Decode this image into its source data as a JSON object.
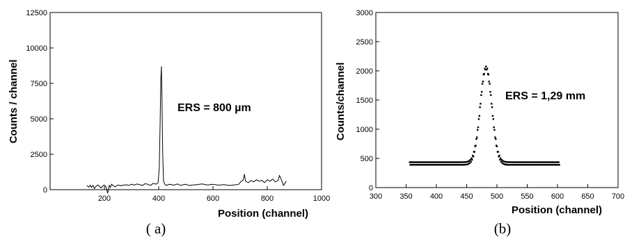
{
  "chart_data": [
    {
      "type": "line",
      "xlabel": "Position (channel)",
      "ylabel": "Counts / channel",
      "xlim": [
        0,
        1000
      ],
      "ylim": [
        0,
        12500
      ],
      "xticks": [
        200,
        400,
        600,
        800,
        1000
      ],
      "yticks": [
        0,
        2500,
        5000,
        7500,
        10000,
        12500
      ],
      "annotation": "ERS = 800 µm",
      "caption": "( a)",
      "series": [
        {
          "x": [
            135,
            142,
            148,
            152,
            158,
            163,
            170,
            176,
            182,
            188,
            195,
            200,
            206,
            212,
            218,
            222,
            226,
            232,
            240,
            250,
            260,
            270,
            280,
            290,
            300,
            310,
            320,
            330,
            340,
            350,
            360,
            370,
            380,
            390,
            398,
            402,
            405,
            408,
            410,
            412,
            415,
            418,
            422,
            428,
            440,
            455,
            470,
            480,
            490,
            500,
            510,
            520,
            540,
            560,
            580,
            600,
            620,
            640,
            660,
            680,
            695,
            700,
            705,
            712,
            716,
            720,
            730,
            740,
            750,
            760,
            770,
            780,
            790,
            800,
            810,
            820,
            830,
            840,
            845,
            850,
            860,
            870
          ],
          "y": [
            300,
            180,
            320,
            150,
            300,
            80,
            260,
            330,
            240,
            120,
            290,
            320,
            200,
            -250,
            300,
            150,
            380,
            300,
            200,
            330,
            280,
            320,
            350,
            300,
            380,
            320,
            400,
            350,
            300,
            420,
            380,
            300,
            450,
            380,
            500,
            1500,
            4500,
            7800,
            8700,
            6500,
            2500,
            600,
            400,
            300,
            380,
            320,
            400,
            300,
            350,
            380,
            300,
            320,
            360,
            400,
            330,
            380,
            320,
            360,
            300,
            340,
            380,
            500,
            600,
            700,
            1100,
            600,
            500,
            650,
            550,
            700,
            600,
            650,
            500,
            700,
            600,
            750,
            550,
            650,
            1000,
            800,
            300,
            600
          ]
        }
      ]
    },
    {
      "type": "scatter",
      "xlabel": "Position (channel)",
      "ylabel": "Counts/channel",
      "xlim": [
        300,
        700
      ],
      "ylim": [
        0,
        3000
      ],
      "xticks": [
        300,
        350,
        400,
        450,
        500,
        550,
        600,
        650,
        700
      ],
      "yticks": [
        0,
        500,
        1000,
        1500,
        2000,
        2500,
        3000
      ],
      "annotation": "ERS = 1,29 mm",
      "caption": "(b)",
      "peak": {
        "center": 482,
        "height": 2050,
        "baseline": 410,
        "sigma": 9.5
      },
      "x_range": [
        356,
        603
      ]
    }
  ]
}
